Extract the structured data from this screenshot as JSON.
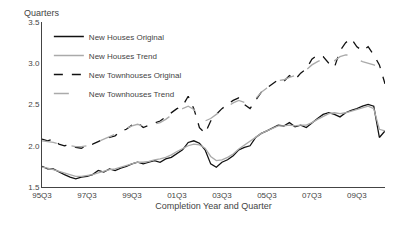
{
  "chart_data": {
    "type": "line",
    "title": "",
    "xlabel": "Completion Year and Quarter",
    "ylabel": "Quarters",
    "categories": [
      "95Q3",
      null,
      null,
      null,
      null,
      null,
      null,
      null,
      "97Q3",
      null,
      null,
      null,
      null,
      null,
      null,
      null,
      "99Q3",
      null,
      null,
      null,
      null,
      null,
      null,
      null,
      "01Q3",
      null,
      null,
      null,
      null,
      null,
      null,
      null,
      "03Q3",
      null,
      null,
      null,
      null,
      null,
      null,
      null,
      "05Q3",
      null,
      null,
      null,
      null,
      null,
      null,
      null,
      "07Q3",
      null,
      null,
      null,
      null,
      null,
      null,
      null,
      "09Q3",
      null,
      null,
      null,
      null,
      null
    ],
    "series": [
      {
        "name": "New Houses Original",
        "color": "#111111",
        "line_style": "solid",
        "values": [
          1.75,
          1.72,
          1.72,
          1.68,
          1.65,
          1.62,
          1.6,
          1.62,
          1.63,
          1.65,
          1.7,
          1.68,
          1.72,
          1.7,
          1.73,
          1.75,
          1.78,
          1.8,
          1.78,
          1.8,
          1.82,
          1.8,
          1.84,
          1.86,
          1.9,
          1.95,
          2.04,
          2.06,
          2.03,
          1.95,
          1.78,
          1.74,
          1.8,
          1.83,
          1.88,
          1.95,
          1.98,
          2.0,
          2.1,
          2.15,
          2.18,
          2.22,
          2.25,
          2.24,
          2.28,
          2.23,
          2.25,
          2.22,
          2.28,
          2.33,
          2.38,
          2.4,
          2.38,
          2.35,
          2.4,
          2.43,
          2.45,
          2.48,
          2.5,
          2.48,
          2.1,
          2.18
        ]
      },
      {
        "name": "New Houses Trend",
        "color": "#aaaaaa",
        "line_style": "solid",
        "values": [
          1.74,
          1.73,
          1.71,
          1.69,
          1.67,
          1.65,
          1.63,
          1.63,
          1.64,
          1.65,
          1.67,
          1.69,
          1.71,
          1.72,
          1.74,
          1.76,
          1.78,
          1.8,
          1.8,
          1.81,
          1.83,
          1.84,
          1.86,
          1.89,
          1.93,
          1.97,
          2.0,
          2.02,
          2.01,
          1.97,
          1.87,
          1.82,
          1.83,
          1.86,
          1.9,
          1.96,
          2.01,
          2.06,
          2.1,
          2.15,
          2.18,
          2.21,
          2.24,
          2.24,
          2.25,
          2.24,
          2.25,
          2.25,
          2.28,
          2.32,
          2.36,
          2.39,
          2.4,
          2.39,
          2.4,
          2.42,
          2.44,
          2.46,
          2.48,
          2.45,
          2.2,
          2.18
        ]
      },
      {
        "name": "New Townhouses Original",
        "color": "#111111",
        "line_style": "dashed",
        "values": [
          2.08,
          2.06,
          2.08,
          2.02,
          2.0,
          2.01,
          1.98,
          1.97,
          2.0,
          2.02,
          2.05,
          2.08,
          2.1,
          2.12,
          2.18,
          2.2,
          2.25,
          2.28,
          2.22,
          2.25,
          2.28,
          2.3,
          2.35,
          2.4,
          2.45,
          2.48,
          2.6,
          2.45,
          2.22,
          2.15,
          2.3,
          2.38,
          2.45,
          2.5,
          2.55,
          2.58,
          2.5,
          2.45,
          2.55,
          2.65,
          2.7,
          2.75,
          2.8,
          2.78,
          2.85,
          2.8,
          2.88,
          2.93,
          3.05,
          3.1,
          3.08,
          3.0,
          2.95,
          3.15,
          3.25,
          3.3,
          3.2,
          3.15,
          3.2,
          3.1,
          2.98,
          2.75
        ]
      },
      {
        "name": "New Townhouses Trend",
        "color": "#aaaaaa",
        "line_style": "longdashed",
        "values": [
          2.06,
          2.05,
          2.04,
          2.02,
          2.01,
          2.0,
          1.99,
          1.99,
          2.0,
          2.02,
          2.05,
          2.08,
          2.11,
          2.14,
          2.18,
          2.21,
          2.24,
          2.26,
          2.24,
          2.24,
          2.26,
          2.28,
          2.32,
          2.37,
          2.42,
          2.45,
          2.48,
          2.44,
          2.35,
          2.3,
          2.33,
          2.38,
          2.43,
          2.48,
          2.52,
          2.55,
          2.52,
          2.5,
          2.57,
          2.65,
          2.7,
          2.75,
          2.79,
          2.8,
          2.83,
          2.85,
          2.88,
          2.92,
          2.98,
          3.02,
          3.05,
          3.05,
          3.03,
          3.08,
          3.1,
          3.1,
          3.05,
          3.02,
          3.0,
          2.98,
          2.95,
          2.9
        ]
      }
    ],
    "ylim": [
      1.5,
      3.5
    ],
    "yticks": [
      1.5,
      {
        "value": 2.0,
        "label": "2.0"
      },
      2.5,
      {
        "value": 3.0,
        "label": "3.0"
      },
      3.5
    ],
    "grid": false,
    "legend": "upper left"
  }
}
